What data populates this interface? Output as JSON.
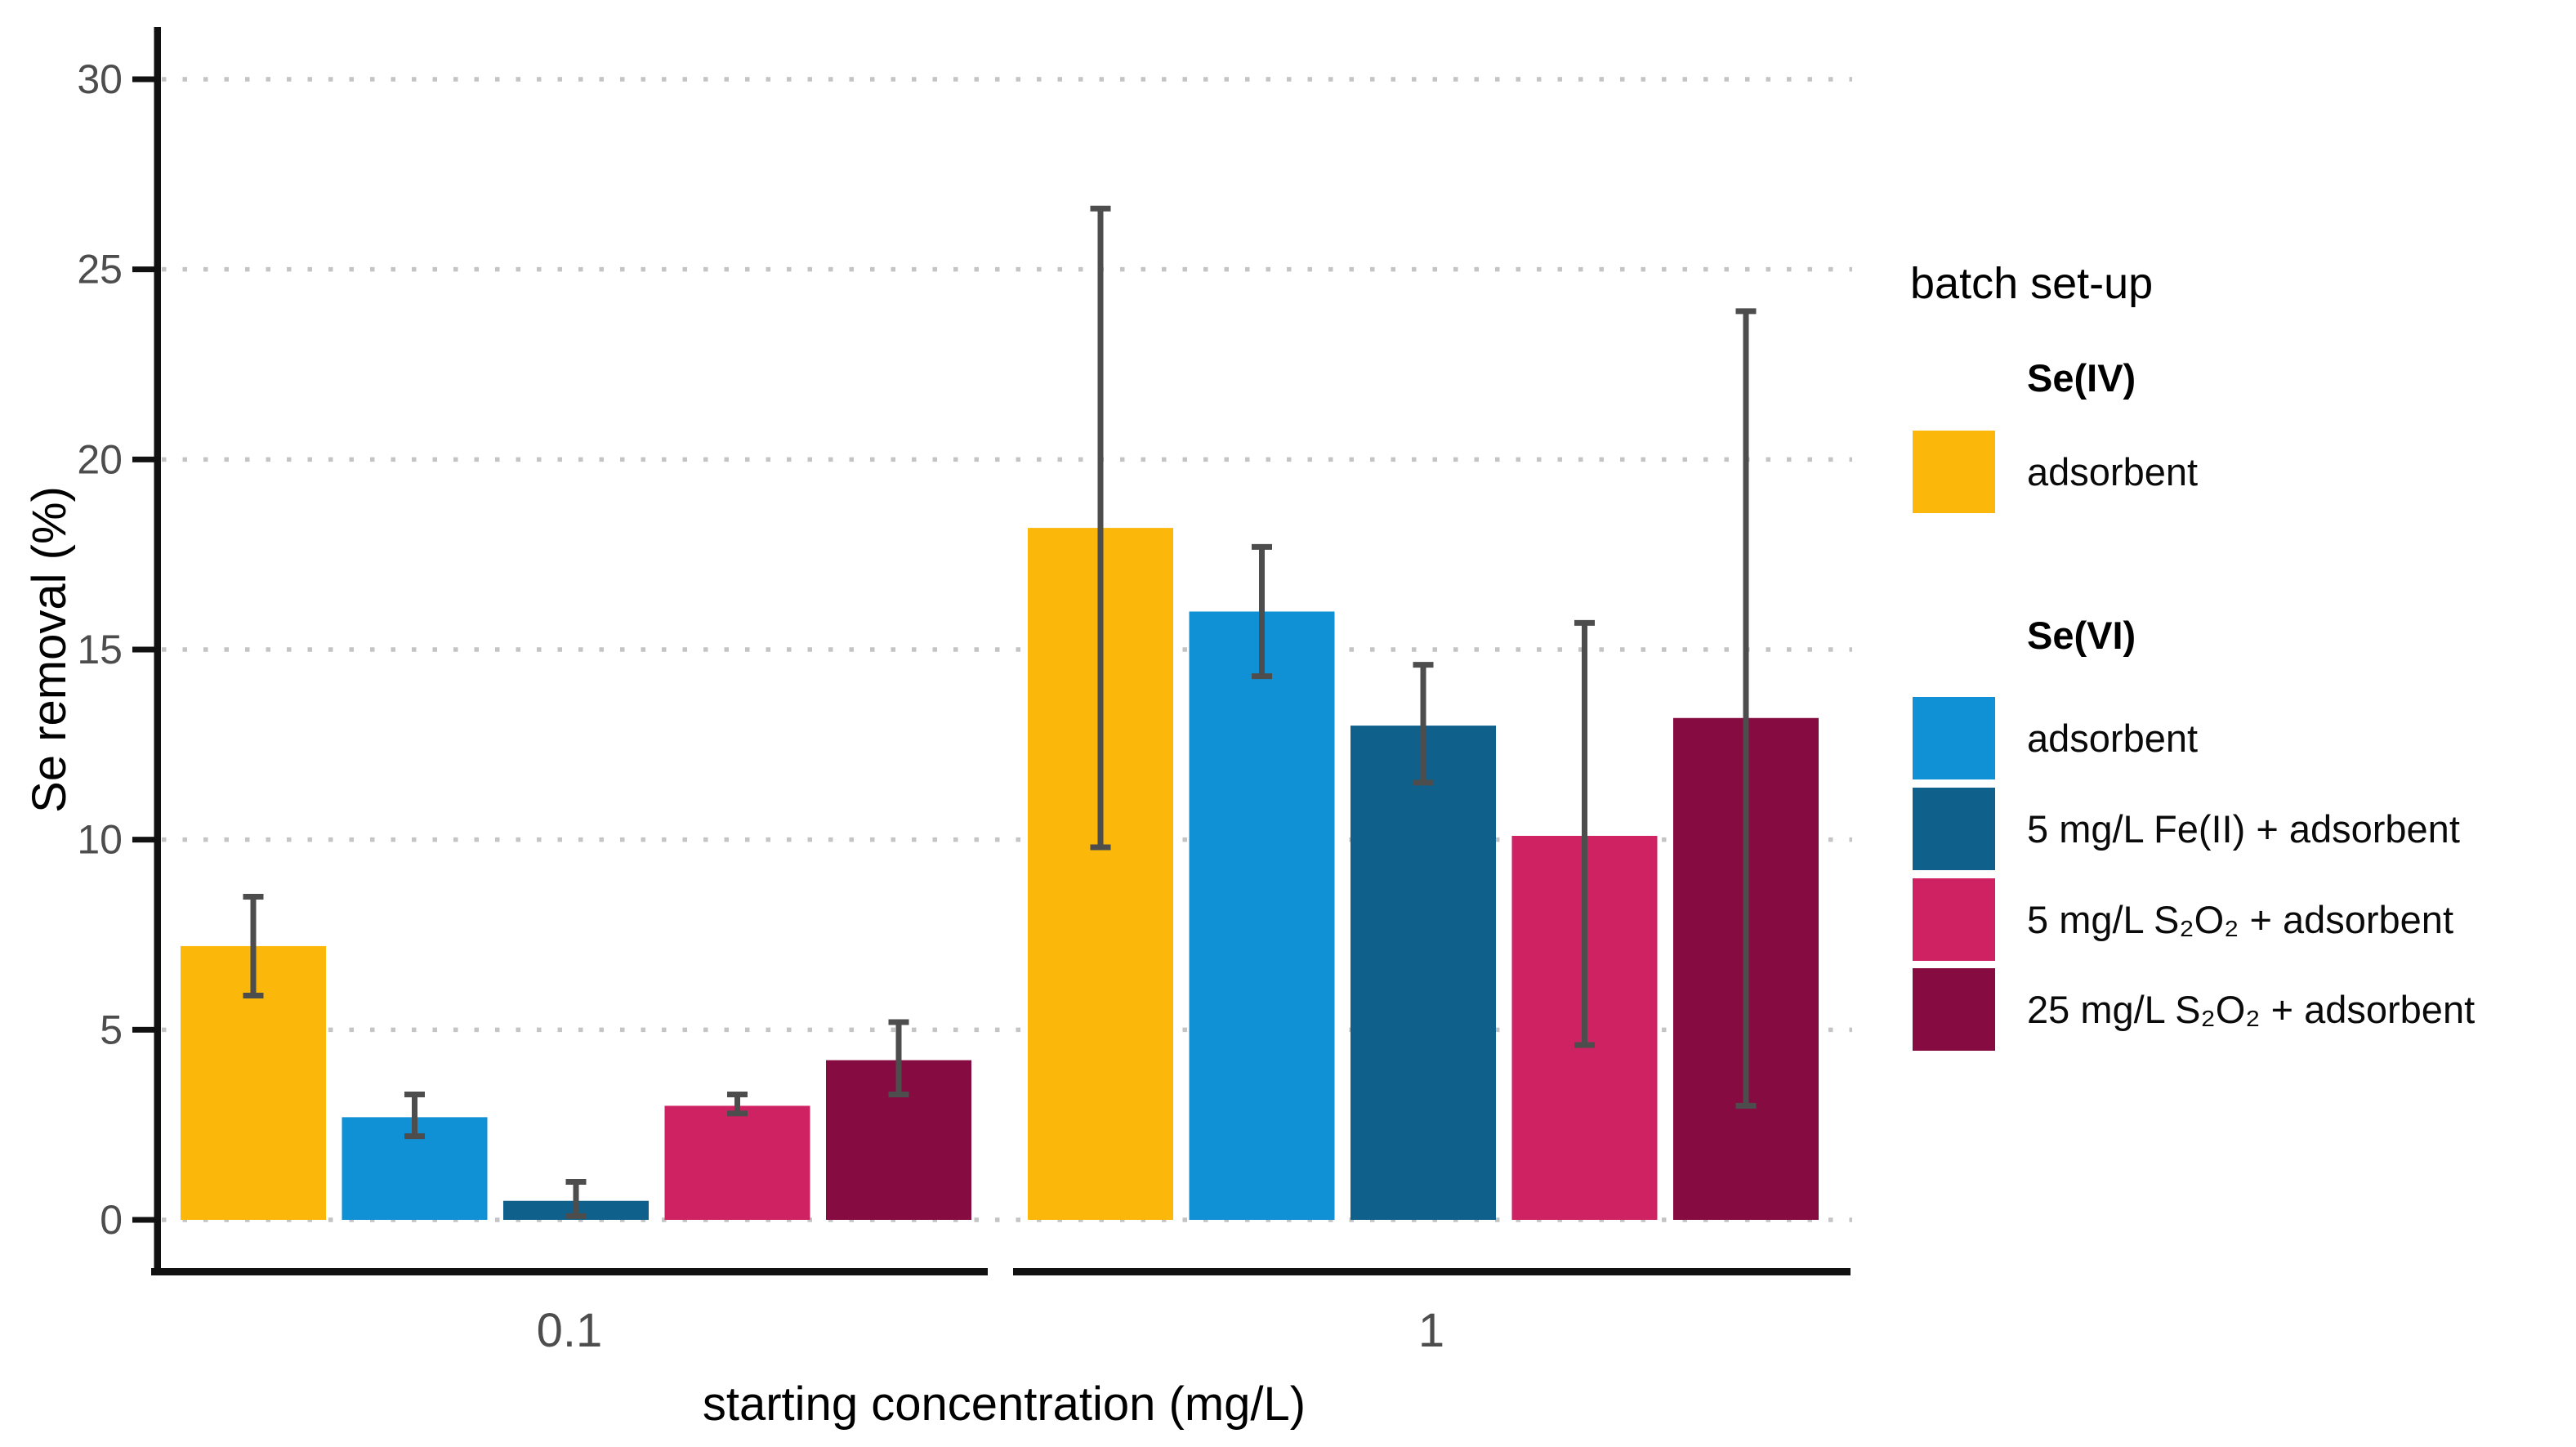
{
  "chart_data": {
    "type": "bar",
    "title": "",
    "xlabel": "starting concentration (mg/L)",
    "ylabel": "Se removal (%)",
    "categories": [
      "0.1",
      "1"
    ],
    "yticks": [
      0,
      5,
      10,
      15,
      20,
      25,
      30
    ],
    "ylim": [
      0,
      30
    ],
    "grid": "horizontal dotted",
    "legend_position": "right",
    "series": [
      {
        "label": "adsorbent",
        "group": "Se(IV)",
        "color": "#FBB80B",
        "values": [
          7.2,
          18.2
        ],
        "err_low": [
          5.9,
          9.8
        ],
        "err_high": [
          8.5,
          26.6
        ]
      },
      {
        "label": "adsorbent",
        "group": "Se(VI)",
        "color": "#1090D5",
        "values": [
          2.7,
          16.0
        ],
        "err_low": [
          2.2,
          14.3
        ],
        "err_high": [
          3.3,
          17.7
        ]
      },
      {
        "label": "5 mg/L Fe(II) + adsorbent",
        "group": "Se(VI)",
        "color": "#0F608B",
        "values": [
          0.5,
          13.0
        ],
        "err_low": [
          0.1,
          11.5
        ],
        "err_high": [
          1.0,
          14.6
        ]
      },
      {
        "label": "5 mg/L S₂O₂ + adsorbent",
        "group": "Se(VI)",
        "color": "#CF2263",
        "values": [
          3.0,
          10.1
        ],
        "err_low": [
          2.8,
          4.6
        ],
        "err_high": [
          3.3,
          15.7
        ]
      },
      {
        "label": "25 mg/L S₂O₂ + adsorbent",
        "group": "Se(VI)",
        "color": "#850B40",
        "values": [
          4.2,
          13.2
        ],
        "err_low": [
          3.3,
          3.0
        ],
        "err_high": [
          5.2,
          23.9
        ]
      }
    ],
    "error_bar_color": "#4D4D4D",
    "colors": {
      "axis": "#111111",
      "tick_label": "#4D4D4D",
      "gridline": "#C4C4C4",
      "title_text": "#000000"
    },
    "legend": {
      "title": "batch set-up",
      "groups": [
        {
          "header": "Se(IV)",
          "series_indexes": [
            0
          ]
        },
        {
          "header": "Se(VI)",
          "series_indexes": [
            1,
            2,
            3,
            4
          ]
        }
      ]
    }
  }
}
